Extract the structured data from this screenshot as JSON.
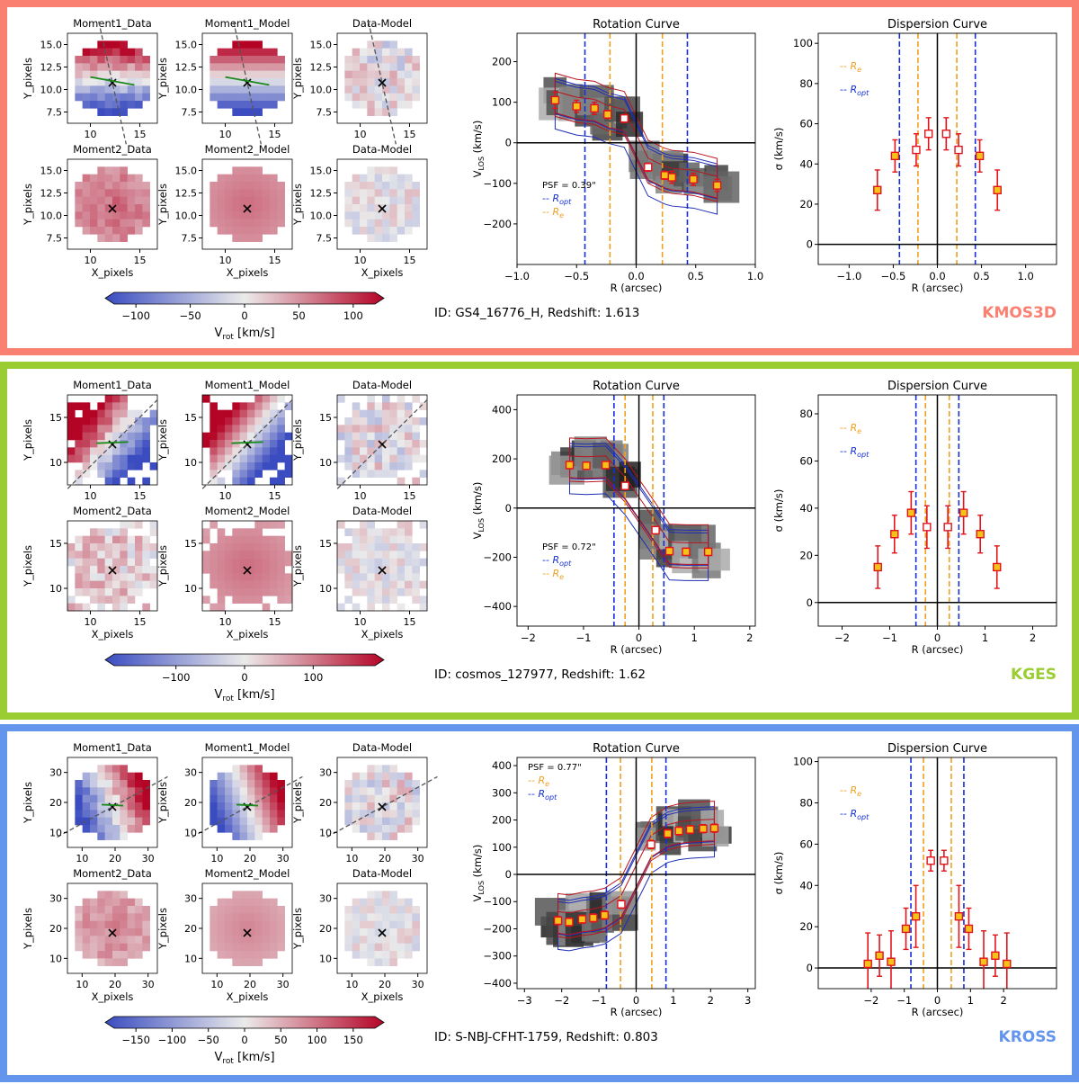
{
  "figure": {
    "panels": [
      {
        "survey": "KMOS3D",
        "border_color": "#FA8072",
        "id_text": "ID: GS4_16776_H,  Redshift: 1.613",
        "maps": {
          "titles": [
            "Moment1_Data",
            "Moment1_Model",
            "Data-Model",
            "Moment2_Data",
            "Moment2_Model",
            "Data-Model"
          ],
          "xlabel": "X_pixels",
          "ylabel": "Y_pixels",
          "xticks": [
            "10",
            "15"
          ],
          "yticks": [
            "15.0",
            "12.5",
            "10.0",
            "7.5"
          ]
        },
        "colorbar": {
          "label": "V",
          "label_sub": "rot",
          "label_unit": " [km/s]",
          "ticks": [
            "−100",
            "−50",
            "0",
            "50",
            "100"
          ],
          "range": [
            -120,
            120
          ]
        },
        "rotation_label_psf": "PSF = 0.39\"",
        "chart_data": [
          {
            "type": "scatter",
            "title": "Rotation Curve",
            "xlabel": "R (arcsec)",
            "ylabel": "V",
            "ylabel_sub": "LOS",
            "ylabel_unit": " (km/s)",
            "xlim": [
              -1.0,
              1.0
            ],
            "ylim": [
              -300,
              270
            ],
            "xticks": [
              -1.0,
              -0.5,
              0.0,
              0.5,
              1.0
            ],
            "xtick_labels": [
              "−1.0",
              "−0.5",
              "0.0",
              "0.5",
              "1.0"
            ],
            "yticks": [
              -200,
              -100,
              0,
              100,
              200
            ],
            "ytick_labels": [
              "−200",
              "−100",
              "0",
              "100",
              "200"
            ],
            "x": [
              -0.68,
              -0.5,
              -0.35,
              -0.24,
              -0.1,
              0.1,
              0.24,
              0.3,
              0.48,
              0.68
            ],
            "y": [
              105,
              90,
              85,
              70,
              60,
              -60,
              -80,
              -85,
              -90,
              -105
            ],
            "yerr": [
              20,
              15,
              15,
              10,
              10,
              10,
              10,
              15,
              15,
              15
            ],
            "vlines": {
              "R_opt": [
                -0.43,
                0.43
              ],
              "R_e": [
                -0.22,
                0.22
              ]
            },
            "legend": [
              "R_opt",
              "R_e"
            ]
          },
          {
            "type": "scatter",
            "title": "Dispersion Curve",
            "xlabel": "R (arcsec)",
            "ylabel": "σ (km/s)",
            "xlim": [
              -1.35,
              1.35
            ],
            "ylim": [
              -10,
              105
            ],
            "xticks": [
              -1.0,
              -0.5,
              0.0,
              0.5,
              1.0
            ],
            "xtick_labels": [
              "−1.0",
              "−0.5",
              "0.0",
              "0.5",
              "1.0"
            ],
            "yticks": [
              0,
              20,
              40,
              60,
              80,
              100
            ],
            "ytick_labels": [
              "0",
              "20",
              "40",
              "60",
              "80",
              "100"
            ],
            "x": [
              -0.68,
              -0.48,
              -0.24,
              -0.1,
              0.1,
              0.24,
              0.48,
              0.68
            ],
            "y": [
              27,
              44,
              47,
              55,
              55,
              47,
              44,
              27
            ],
            "yerr": [
              10,
              8,
              8,
              8,
              8,
              8,
              8,
              10
            ],
            "vlines": {
              "R_opt": [
                -0.43,
                0.43
              ],
              "R_e": [
                -0.22,
                0.22
              ]
            },
            "legend": [
              "R_e",
              "R_opt"
            ]
          }
        ]
      },
      {
        "survey": "KGES",
        "border_color": "#9ACD32",
        "id_text": "ID: cosmos_127977,  Redshift: 1.62",
        "maps": {
          "titles": [
            "Moment1_Data",
            "Moment1_Model",
            "Data-Model",
            "Moment2_Data",
            "Moment2_Model",
            "Data-Model"
          ],
          "xlabel": "X_pixels",
          "ylabel": "Y_pixels",
          "xticks": [
            "10",
            "15"
          ],
          "yticks": [
            "15",
            "10"
          ]
        },
        "colorbar": {
          "label": "V",
          "label_sub": "rot",
          "label_unit": " [km/s]",
          "ticks": [
            "−100",
            "0",
            "100"
          ],
          "range": [
            -190,
            190
          ]
        },
        "rotation_label_psf": "PSF = 0.72\"",
        "chart_data": [
          {
            "type": "scatter",
            "title": "Rotation Curve",
            "xlabel": "R (arcsec)",
            "ylabel": "V",
            "ylabel_sub": "LOS",
            "ylabel_unit": " (km/s)",
            "xlim": [
              -2.2,
              2.1
            ],
            "ylim": [
              -480,
              460
            ],
            "xticks": [
              -2,
              -1,
              0,
              1,
              2
            ],
            "xtick_labels": [
              "−2",
              "−1",
              "0",
              "1",
              "2"
            ],
            "yticks": [
              -400,
              -200,
              0,
              200,
              400
            ],
            "ytick_labels": [
              "−400",
              "−200",
              "0",
              "200",
              "400"
            ],
            "x": [
              -1.25,
              -0.95,
              -0.6,
              -0.25,
              0.3,
              0.55,
              0.85,
              1.25
            ],
            "y": [
              175,
              172,
              175,
              90,
              -90,
              -175,
              -178,
              -178
            ],
            "yerr": [
              15,
              15,
              15,
              15,
              15,
              15,
              15,
              15
            ],
            "vlines": {
              "R_opt": [
                -0.45,
                0.45
              ],
              "R_e": [
                -0.25,
                0.25
              ]
            },
            "legend": [
              "R_opt",
              "R_e"
            ]
          },
          {
            "type": "scatter",
            "title": "Dispersion Curve",
            "xlabel": "R (arcsec)",
            "ylabel": "σ (km/s)",
            "xlim": [
              -2.5,
              2.5
            ],
            "ylim": [
              -10,
              88
            ],
            "xticks": [
              -2,
              -1,
              0,
              1,
              2
            ],
            "xtick_labels": [
              "−2",
              "−1",
              "0",
              "1",
              "2"
            ],
            "yticks": [
              0,
              20,
              40,
              60,
              80
            ],
            "ytick_labels": [
              "0",
              "20",
              "40",
              "60",
              "80"
            ],
            "x": [
              -1.25,
              -0.9,
              -0.55,
              -0.22,
              0.22,
              0.55,
              0.9,
              1.25
            ],
            "y": [
              15,
              29,
              38,
              32,
              32,
              38,
              29,
              15
            ],
            "yerr": [
              9,
              8,
              9,
              9,
              9,
              9,
              8,
              9
            ],
            "vlines": {
              "R_opt": [
                -0.45,
                0.45
              ],
              "R_e": [
                -0.25,
                0.25
              ]
            },
            "legend": [
              "R_e",
              "R_opt"
            ]
          }
        ]
      },
      {
        "survey": "KROSS",
        "border_color": "#6495ED",
        "id_text": "ID: S-NBJ-CFHT-1759,  Redshift: 0.803",
        "maps": {
          "titles": [
            "Moment1_Data",
            "Moment1_Model",
            "Data-Model",
            "Moment2_Data",
            "Moment2_Model",
            "Data-Model"
          ],
          "xlabel": "X_pixels",
          "ylabel": "Y_pixels",
          "xticks": [
            "10",
            "20",
            "30"
          ],
          "yticks": [
            "30",
            "20",
            "10"
          ]
        },
        "colorbar": {
          "label": "V",
          "label_sub": "rot",
          "label_unit": " [km/s]",
          "ticks": [
            "−150",
            "−100",
            "−50",
            "0",
            "50",
            "100",
            "150"
          ],
          "range": [
            -180,
            180
          ]
        },
        "rotation_label_psf": "PSF = 0.77\"",
        "chart_data": [
          {
            "type": "scatter",
            "title": "Rotation Curve",
            "xlabel": "R (arcsec)",
            "ylabel": "V",
            "ylabel_sub": "LOS",
            "ylabel_unit": " (km/s)",
            "xlim": [
              -3.2,
              3.2
            ],
            "ylim": [
              -420,
              430
            ],
            "xticks": [
              -3,
              -2,
              -1,
              0,
              1,
              2,
              3
            ],
            "xtick_labels": [
              "−3",
              "−2",
              "−1",
              "0",
              "1",
              "2",
              "3"
            ],
            "yticks": [
              -400,
              -300,
              -200,
              -100,
              0,
              100,
              200,
              300,
              400
            ],
            "ytick_labels": [
              "−400",
              "−300",
              "−200",
              "−100",
              "0",
              "100",
              "200",
              "300",
              "400"
            ],
            "x": [
              -2.1,
              -1.8,
              -1.45,
              -1.15,
              -0.85,
              -0.4,
              0.4,
              0.85,
              1.15,
              1.45,
              1.8,
              2.1
            ],
            "y": [
              -170,
              -175,
              -165,
              -160,
              -150,
              -110,
              110,
              150,
              160,
              165,
              168,
              170
            ],
            "yerr": [
              15,
              15,
              15,
              15,
              15,
              15,
              15,
              15,
              15,
              15,
              15,
              15
            ],
            "vlines": {
              "R_opt": [
                -0.8,
                0.8
              ],
              "R_e": [
                -0.42,
                0.42
              ]
            },
            "legend": [
              "R_e",
              "R_opt"
            ]
          },
          {
            "type": "scatter",
            "title": "Dispersion Curve",
            "xlabel": "R (arcsec)",
            "ylabel": "σ (km/s)",
            "xlim": [
              -3.6,
              3.6
            ],
            "ylim": [
              -10,
              102
            ],
            "xticks": [
              -2,
              -1,
              0,
              1,
              2
            ],
            "xtick_labels": [
              "−2",
              "−1",
              "0",
              "1",
              "2"
            ],
            "yticks": [
              0,
              20,
              40,
              60,
              80,
              100
            ],
            "ytick_labels": [
              "0",
              "20",
              "40",
              "60",
              "80",
              "100"
            ],
            "x": [
              -2.1,
              -1.75,
              -1.4,
              -0.95,
              -0.65,
              -0.2,
              0.2,
              0.65,
              0.95,
              1.4,
              1.75,
              2.1
            ],
            "y": [
              2,
              6,
              3,
              19,
              25,
              52,
              52,
              25,
              19,
              3,
              6,
              2
            ],
            "yerr": [
              15,
              10,
              15,
              10,
              15,
              5,
              5,
              15,
              10,
              15,
              10,
              15
            ],
            "vlines": {
              "R_opt": [
                -0.8,
                0.8
              ],
              "R_e": [
                -0.42,
                0.42
              ]
            },
            "legend": [
              "R_e",
              "R_opt"
            ]
          }
        ]
      }
    ]
  }
}
